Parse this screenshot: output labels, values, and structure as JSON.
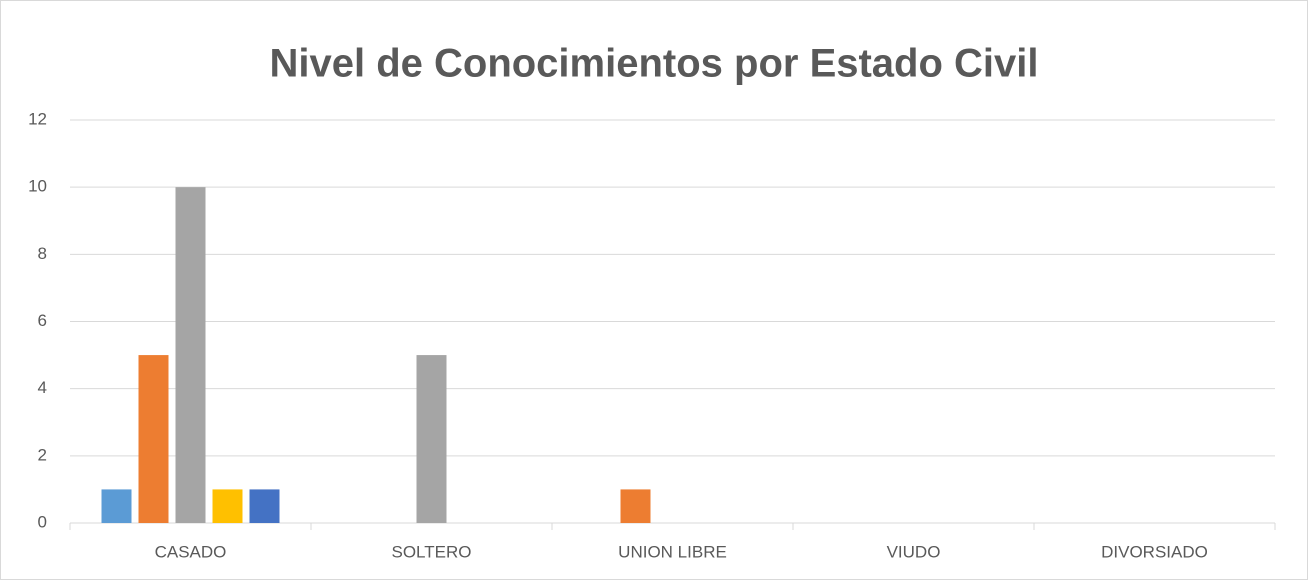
{
  "chart_data": {
    "type": "bar",
    "title": "Nivel de Conocimientos por Estado Civil",
    "categories": [
      "CASADO",
      "SOLTERO",
      "UNION LIBRE",
      "VIUDO",
      "DIVORSIADO"
    ],
    "series": [
      {
        "color": "#5b9bd5",
        "values": [
          1,
          0,
          0,
          0,
          0
        ]
      },
      {
        "color": "#ed7d31",
        "values": [
          5,
          0,
          1,
          0,
          0
        ]
      },
      {
        "color": "#a5a5a5",
        "values": [
          10,
          5,
          0,
          0,
          0
        ]
      },
      {
        "color": "#ffc000",
        "values": [
          1,
          0,
          0,
          0,
          0
        ]
      },
      {
        "color": "#4472c4",
        "values": [
          1,
          0,
          0,
          0,
          0
        ]
      }
    ],
    "ylim": [
      0,
      12
    ],
    "yticks": [
      0,
      2,
      4,
      6,
      8,
      10,
      12
    ],
    "grid": true
  }
}
